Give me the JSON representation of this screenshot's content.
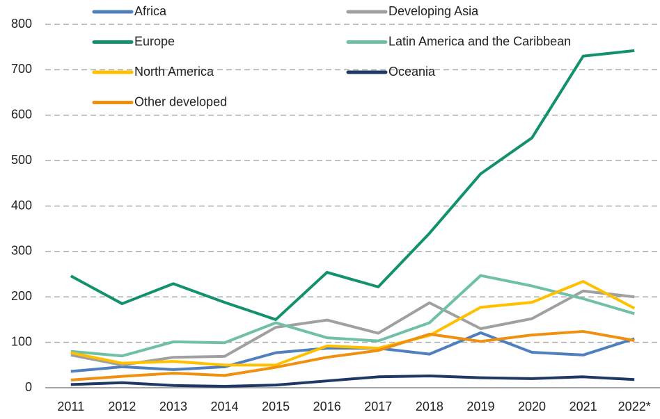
{
  "chart_data": {
    "type": "line",
    "categories": [
      "2011",
      "2012",
      "2013",
      "2014",
      "2015",
      "2016",
      "2017",
      "2018",
      "2019",
      "2020",
      "2021",
      "2022*"
    ],
    "series": [
      {
        "name": "Africa",
        "color": "#4f7fbf",
        "values": [
          36,
          46,
          40,
          46,
          77,
          87,
          87,
          74,
          121,
          78,
          72,
          108
        ]
      },
      {
        "name": "Developing Asia",
        "color": "#a0a0a0",
        "values": [
          72,
          50,
          67,
          69,
          133,
          149,
          120,
          187,
          130,
          152,
          213,
          200
        ]
      },
      {
        "name": "Europe",
        "color": "#13916f",
        "values": [
          246,
          185,
          229,
          188,
          150,
          254,
          222,
          340,
          471,
          550,
          730,
          742
        ]
      },
      {
        "name": "Latin America and the Caribbean",
        "color": "#6fc0a6",
        "values": [
          80,
          70,
          101,
          99,
          143,
          110,
          103,
          143,
          247,
          224,
          196,
          163
        ]
      },
      {
        "name": "North America",
        "color": "#ffc000",
        "values": [
          77,
          54,
          58,
          50,
          50,
          92,
          87,
          115,
          177,
          188,
          234,
          175
        ]
      },
      {
        "name": "Oceania",
        "color": "#1f3864",
        "values": [
          7,
          11,
          5,
          3,
          6,
          15,
          24,
          26,
          22,
          20,
          24,
          18
        ]
      },
      {
        "name": "Other developed",
        "color": "#f0900f",
        "values": [
          17,
          25,
          32,
          27,
          45,
          67,
          82,
          118,
          102,
          116,
          124,
          104
        ]
      }
    ],
    "ylim": [
      0,
      800
    ],
    "yticks": [
      0,
      100,
      200,
      300,
      400,
      500,
      600,
      700,
      800
    ],
    "grid": true,
    "legend": "top"
  }
}
